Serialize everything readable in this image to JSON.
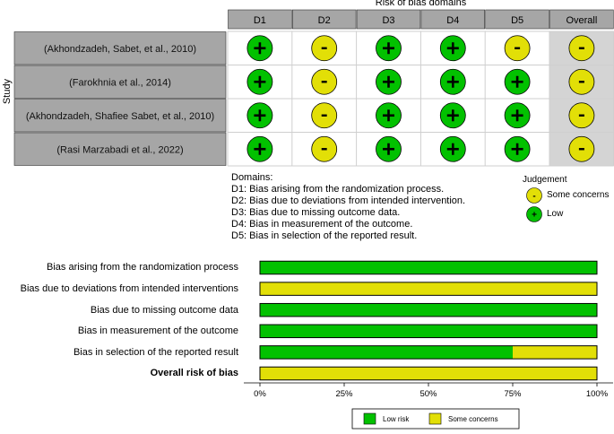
{
  "traffic_light": {
    "header_title": "Risk of bias domains",
    "y_axis_label": "Study",
    "columns": [
      "D1",
      "D2",
      "D3",
      "D4",
      "D5",
      "Overall"
    ],
    "studies": [
      {
        "label": "(Akhondzadeh, Sabet, et al., 2010)",
        "judgements": [
          "+",
          "-",
          "+",
          "+",
          "-",
          "-"
        ]
      },
      {
        "label": "(Farokhnia et al., 2014)",
        "judgements": [
          "+",
          "-",
          "+",
          "+",
          "+",
          "-"
        ]
      },
      {
        "label": "(Akhondzadeh, Shafiee Sabet, et al., 2010)",
        "judgements": [
          "+",
          "-",
          "+",
          "+",
          "+",
          "-"
        ]
      },
      {
        "label": "(Rasi Marzabadi et al., 2022)",
        "judgements": [
          "+",
          "-",
          "+",
          "+",
          "+",
          "-"
        ]
      }
    ],
    "domains_title": "Domains:",
    "domain_descriptions": [
      "D1: Bias arising from the randomization process.",
      "D2: Bias due to deviations from intended intervention.",
      "D3: Bias due to missing outcome data.",
      "D4: Bias in measurement of the outcome.",
      "D5: Bias in selection of the reported result."
    ],
    "judgement_title": "Judgement",
    "judgement_legend": [
      {
        "symbol": "-",
        "label": "Some concerns",
        "color": "#e2df07"
      },
      {
        "symbol": "+",
        "label": "Low",
        "color": "#02c100"
      }
    ]
  },
  "chart_data": {
    "type": "bar",
    "orientation": "horizontal",
    "stacked": true,
    "categories": [
      "Bias arising from the randomization process",
      "Bias due to deviations from intended interventions",
      "Bias due to missing outcome data",
      "Bias in measurement of the outcome",
      "Bias in selection of the reported result",
      "Overall risk of bias"
    ],
    "bold_category": "Overall risk of bias",
    "series": [
      {
        "name": "Low risk",
        "values": [
          100,
          0,
          100,
          100,
          75,
          0
        ],
        "color": "#02c100"
      },
      {
        "name": "Some concerns",
        "values": [
          0,
          100,
          0,
          0,
          25,
          100
        ],
        "color": "#e2df07"
      }
    ],
    "xlim": [
      0,
      100
    ],
    "x_ticks": [
      "0%",
      "25%",
      "50%",
      "75%",
      "100%"
    ],
    "legend_position": "bottom"
  },
  "colors": {
    "low": "#02c100",
    "some_concerns": "#e2df07",
    "study_cell": "#a6a6a6",
    "header_cell": "#a6a6a6",
    "overall_cell": "#d4d4d4",
    "grid_line": "#cfcfcf"
  }
}
